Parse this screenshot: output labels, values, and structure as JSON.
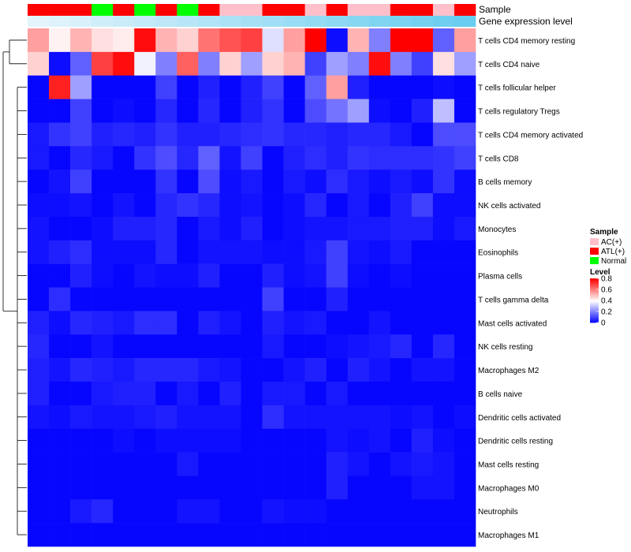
{
  "chart_data": {
    "type": "heatmap",
    "annotation_tracks": [
      {
        "name": "Sample",
        "values": [
          "ATL(+)",
          "ATL(+)",
          "ATL(+)",
          "Normal",
          "ATL(+)",
          "Normal",
          "ATL(+)",
          "Normal",
          "ATL(+)",
          "AC(+)",
          "AC(+)",
          "ATL(+)",
          "ATL(+)",
          "AC(+)",
          "ATL(+)",
          "AC(+)",
          "AC(+)",
          "ATL(+)",
          "ATL(+)",
          "AC(+)",
          "ATL(+)"
        ]
      },
      {
        "name": "Gene expression level",
        "values": [
          0.02,
          0.06,
          0.1,
          0.14,
          0.18,
          0.22,
          0.26,
          0.3,
          0.34,
          0.38,
          0.42,
          0.46,
          0.5,
          0.54,
          0.58,
          0.62,
          0.66,
          0.7,
          0.74,
          0.78,
          0.82
        ]
      }
    ],
    "rows": [
      "T cells CD4 memory resting",
      "T cells CD4 naive",
      "T cells follicular helper",
      "T cells regulatory  Tregs",
      "T cells CD4 memory activated",
      "T cells CD8",
      "B cells memory",
      "NK cells activated",
      "Monocytes",
      "Eosinophils",
      "Plasma cells",
      "T cells gamma delta",
      "Mast cells activated",
      "NK cells resting",
      "Macrophages M2",
      "B cells naive",
      "Dendritic cells activated",
      "Dendritic cells resting",
      "Mast cells resting",
      "Macrophages M0",
      "Neutrophils",
      "Macrophages M1"
    ],
    "values": [
      [
        0.55,
        0.42,
        0.52,
        0.45,
        0.43,
        0.78,
        0.52,
        0.47,
        0.62,
        0.67,
        0.7,
        0.35,
        0.55,
        0.8,
        0.02,
        0.52,
        0.2,
        0.8,
        0.8,
        0.15,
        0.55
      ],
      [
        0.47,
        0.02,
        0.15,
        0.7,
        0.78,
        0.38,
        0.2,
        0.65,
        0.2,
        0.47,
        0.25,
        0.47,
        0.52,
        0.1,
        0.25,
        0.2,
        0.78,
        0.2,
        0.1,
        0.45,
        0.25
      ],
      [
        0.01,
        0.75,
        0.25,
        0.01,
        0.01,
        0.01,
        0.1,
        0.01,
        0.05,
        0.01,
        0.05,
        0.1,
        0.01,
        0.15,
        0.55,
        0.05,
        0.01,
        0.01,
        0.01,
        0.02,
        0.01
      ],
      [
        0.01,
        0.01,
        0.1,
        0.01,
        0.02,
        0.01,
        0.06,
        0.01,
        0.06,
        0.01,
        0.05,
        0.08,
        0.01,
        0.12,
        0.18,
        0.25,
        0.02,
        0.01,
        0.05,
        0.3,
        0.01
      ],
      [
        0.04,
        0.08,
        0.1,
        0.05,
        0.06,
        0.05,
        0.08,
        0.05,
        0.05,
        0.06,
        0.07,
        0.08,
        0.06,
        0.06,
        0.05,
        0.06,
        0.06,
        0.04,
        0.01,
        0.12,
        0.12
      ],
      [
        0.04,
        0.01,
        0.06,
        0.04,
        0.01,
        0.08,
        0.12,
        0.06,
        0.15,
        0.03,
        0.1,
        0.01,
        0.05,
        0.07,
        0.05,
        0.08,
        0.07,
        0.07,
        0.07,
        0.08,
        0.1
      ],
      [
        0.01,
        0.03,
        0.1,
        0.01,
        0.01,
        0.01,
        0.08,
        0.01,
        0.12,
        0.02,
        0.04,
        0.01,
        0.04,
        0.02,
        0.07,
        0.04,
        0.02,
        0.04,
        0.02,
        0.08,
        0.02
      ],
      [
        0.02,
        0.02,
        0.03,
        0.01,
        0.03,
        0.01,
        0.06,
        0.08,
        0.06,
        0.02,
        0.03,
        0.01,
        0.02,
        0.06,
        0.01,
        0.04,
        0.01,
        0.05,
        0.1,
        0.02,
        0.02
      ],
      [
        0.03,
        0.01,
        0.01,
        0.02,
        0.05,
        0.05,
        0.06,
        0.01,
        0.04,
        0.02,
        0.05,
        0.01,
        0.02,
        0.03,
        0.03,
        0.04,
        0.04,
        0.05,
        0.05,
        0.02,
        0.04
      ],
      [
        0.03,
        0.05,
        0.07,
        0.02,
        0.02,
        0.02,
        0.06,
        0.01,
        0.03,
        0.03,
        0.03,
        0.02,
        0.02,
        0.04,
        0.1,
        0.03,
        0.02,
        0.04,
        0.01,
        0.01,
        0.01
      ],
      [
        0.01,
        0.01,
        0.05,
        0.02,
        0.01,
        0.03,
        0.02,
        0.02,
        0.05,
        0.01,
        0.01,
        0.05,
        0.02,
        0.03,
        0.1,
        0.02,
        0.01,
        0.02,
        0.01,
        0.01,
        0.01
      ],
      [
        0.01,
        0.07,
        0.01,
        0.01,
        0.01,
        0.01,
        0.01,
        0.01,
        0.01,
        0.01,
        0.01,
        0.1,
        0.01,
        0.01,
        0.05,
        0.01,
        0.01,
        0.01,
        0.01,
        0.01,
        0.01
      ],
      [
        0.05,
        0.02,
        0.06,
        0.05,
        0.04,
        0.07,
        0.07,
        0.01,
        0.05,
        0.03,
        0.01,
        0.05,
        0.03,
        0.04,
        0.01,
        0.01,
        0.03,
        0.01,
        0.01,
        0.01,
        0.01
      ],
      [
        0.06,
        0.01,
        0.01,
        0.03,
        0.01,
        0.01,
        0.01,
        0.01,
        0.01,
        0.01,
        0.01,
        0.04,
        0.01,
        0.01,
        0.02,
        0.03,
        0.04,
        0.06,
        0.01,
        0.06,
        0.01
      ],
      [
        0.05,
        0.03,
        0.06,
        0.05,
        0.04,
        0.06,
        0.06,
        0.06,
        0.04,
        0.03,
        0.01,
        0.01,
        0.03,
        0.05,
        0.01,
        0.05,
        0.03,
        0.01,
        0.03,
        0.03,
        0.01
      ],
      [
        0.05,
        0.01,
        0.01,
        0.04,
        0.05,
        0.05,
        0.01,
        0.04,
        0.01,
        0.05,
        0.01,
        0.04,
        0.04,
        0.01,
        0.04,
        0.01,
        0.01,
        0.01,
        0.01,
        0.01,
        0.01
      ],
      [
        0.03,
        0.02,
        0.04,
        0.03,
        0.03,
        0.04,
        0.05,
        0.03,
        0.03,
        0.03,
        0.01,
        0.07,
        0.03,
        0.03,
        0.03,
        0.03,
        0.03,
        0.02,
        0.03,
        0.01,
        0.02
      ],
      [
        0.01,
        0.01,
        0.01,
        0.01,
        0.02,
        0.01,
        0.02,
        0.02,
        0.02,
        0.02,
        0.01,
        0.01,
        0.01,
        0.01,
        0.03,
        0.02,
        0.03,
        0.01,
        0.05,
        0.02,
        0.01
      ],
      [
        0.01,
        0.01,
        0.01,
        0.01,
        0.01,
        0.01,
        0.01,
        0.04,
        0.01,
        0.01,
        0.01,
        0.01,
        0.01,
        0.01,
        0.05,
        0.03,
        0.01,
        0.03,
        0.04,
        0.03,
        0.01
      ],
      [
        0.01,
        0.01,
        0.01,
        0.01,
        0.01,
        0.01,
        0.01,
        0.01,
        0.01,
        0.01,
        0.01,
        0.01,
        0.01,
        0.01,
        0.05,
        0.01,
        0.01,
        0.01,
        0.03,
        0.03,
        0.01
      ],
      [
        0.01,
        0.01,
        0.04,
        0.06,
        0.01,
        0.01,
        0.01,
        0.03,
        0.03,
        0.01,
        0.01,
        0.03,
        0.02,
        0.02,
        0.01,
        0.01,
        0.01,
        0.01,
        0.01,
        0.01,
        0.01
      ],
      [
        0.01,
        0.01,
        0.01,
        0.01,
        0.01,
        0.01,
        0.01,
        0.01,
        0.01,
        0.01,
        0.01,
        0.01,
        0.01,
        0.01,
        0.01,
        0.01,
        0.01,
        0.01,
        0.01,
        0.01,
        0.01
      ]
    ],
    "sample_legend": {
      "title": "Sample",
      "entries": [
        {
          "label": "AC(+)",
          "color": "#ffc0cb"
        },
        {
          "label": "ATL(+)",
          "color": "#ff0000"
        },
        {
          "label": "Normal",
          "color": "#00ff00"
        }
      ]
    },
    "level_legend": {
      "title": "Level",
      "range": [
        0,
        0.8
      ],
      "ticks": [
        0.8,
        0.6,
        0.4,
        0.2,
        0
      ],
      "tick_labels": [
        "0.8",
        "0.6",
        "0.4",
        "0.2",
        "0"
      ]
    },
    "colorscale": {
      "low": "#0000ff",
      "mid": "#ffffff",
      "high": "#ff0000",
      "mid_value": 0.4
    },
    "expression_track_colors": {
      "low": "#e6f5fc",
      "high": "#4cc4ec"
    },
    "row_dendrogram": true,
    "legend_position": "right"
  }
}
